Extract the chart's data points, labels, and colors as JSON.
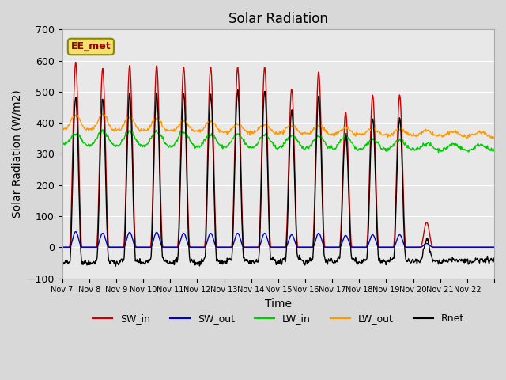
{
  "title": "Solar Radiation",
  "ylabel": "Solar Radiation (W/m2)",
  "xlabel": "Time",
  "ylim": [
    -100,
    700
  ],
  "yticks": [
    -100,
    0,
    100,
    200,
    300,
    400,
    500,
    600,
    700
  ],
  "station_label": "EE_met",
  "fig_bg_color": "#d8d8d8",
  "ax_bg_color": "#e8e8e8",
  "sw_in_color": "#cc0000",
  "sw_out_color": "#0000cc",
  "lw_in_color": "#00cc00",
  "lw_out_color": "#ff9900",
  "rnet_color": "#000000",
  "n_days": 16,
  "points_per_day": 48,
  "sw_in_peaks": [
    595,
    575,
    585,
    585,
    580,
    580,
    580,
    580,
    510,
    565,
    435,
    490,
    490,
    80,
    0,
    0
  ],
  "sw_out_peaks": [
    50,
    45,
    48,
    48,
    45,
    45,
    45,
    45,
    40,
    45,
    38,
    40,
    40,
    12,
    0,
    0
  ],
  "lw_in_bumps": [
    35,
    45,
    45,
    45,
    45,
    40,
    40,
    40,
    40,
    40,
    40,
    30,
    30,
    20,
    20,
    20
  ],
  "lw_out_bumps": [
    45,
    50,
    40,
    40,
    35,
    35,
    25,
    25,
    25,
    25,
    20,
    20,
    20,
    15,
    15,
    15
  ],
  "xtick_positions": [
    0,
    1,
    2,
    3,
    4,
    5,
    6,
    7,
    8,
    9,
    10,
    11,
    12,
    13,
    14,
    15,
    16
  ],
  "xtick_labels": [
    "Nov 7",
    "Nov 8",
    "Nov 9",
    "Nov 10",
    "Nov 11",
    "Nov 12",
    "Nov 13",
    "Nov 14",
    "Nov 15",
    "Nov 16",
    "Nov 17",
    "Nov 18",
    "Nov 19",
    "Nov 20",
    "Nov 21",
    "Nov 22",
    ""
  ],
  "legend_labels": [
    "SW_in",
    "SW_out",
    "LW_in",
    "LW_out",
    "Rnet"
  ]
}
